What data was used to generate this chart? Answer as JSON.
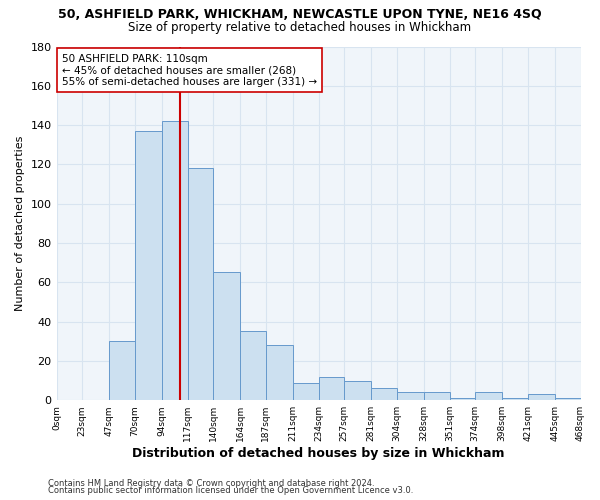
{
  "title": "50, ASHFIELD PARK, WHICKHAM, NEWCASTLE UPON TYNE, NE16 4SQ",
  "subtitle": "Size of property relative to detached houses in Whickham",
  "xlabel": "Distribution of detached houses by size in Whickham",
  "ylabel": "Number of detached properties",
  "bin_edges": [
    0,
    23,
    47,
    70,
    94,
    117,
    140,
    164,
    187,
    211,
    234,
    257,
    281,
    304,
    328,
    351,
    374,
    398,
    421,
    445,
    468
  ],
  "bar_heights": [
    0,
    0,
    30,
    137,
    142,
    118,
    65,
    35,
    28,
    9,
    12,
    10,
    6,
    4,
    4,
    1,
    4,
    1,
    3,
    1
  ],
  "bar_color": "#cce0f0",
  "bar_edge_color": "#6699cc",
  "grid_color": "#d8e4f0",
  "bg_color": "#ffffff",
  "plot_bg_color": "#f0f5fa",
  "vline_x": 110,
  "vline_color": "#cc0000",
  "annotation_text": "50 ASHFIELD PARK: 110sqm\n← 45% of detached houses are smaller (268)\n55% of semi-detached houses are larger (331) →",
  "annotation_box_color": "#ffffff",
  "annotation_box_edge": "#cc0000",
  "ylim": [
    0,
    180
  ],
  "tick_labels": [
    "0sqm",
    "23sqm",
    "47sqm",
    "70sqm",
    "94sqm",
    "117sqm",
    "140sqm",
    "164sqm",
    "187sqm",
    "211sqm",
    "234sqm",
    "257sqm",
    "281sqm",
    "304sqm",
    "328sqm",
    "351sqm",
    "374sqm",
    "398sqm",
    "421sqm",
    "445sqm",
    "468sqm"
  ],
  "footer_line1": "Contains HM Land Registry data © Crown copyright and database right 2024.",
  "footer_line2": "Contains public sector information licensed under the Open Government Licence v3.0."
}
